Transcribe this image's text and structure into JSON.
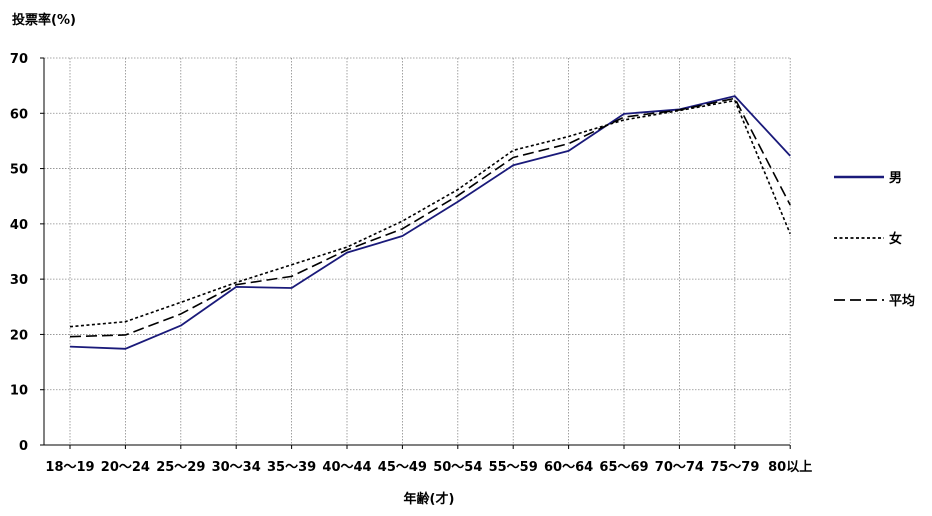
{
  "chart_data": {
    "type": "line",
    "ylabel": "投票率(%)",
    "xlabel": "年齢(才)",
    "ylim": [
      0,
      70
    ],
    "yticks": [
      "0",
      "10",
      "20",
      "30",
      "40",
      "50",
      "60",
      "70"
    ],
    "grid": true,
    "legend_position": "right",
    "categories": [
      "18〜19",
      "20〜24",
      "25〜29",
      "30〜34",
      "35〜39",
      "40〜44",
      "45〜49",
      "50〜54",
      "55〜59",
      "60〜64",
      "65〜69",
      "70〜74",
      "75〜79",
      "80以上"
    ],
    "series": [
      {
        "name": "男",
        "style": "solid",
        "color": "#1a1a7a",
        "values": [
          17.8,
          17.4,
          21.6,
          28.6,
          28.4,
          34.8,
          37.8,
          44.0,
          50.6,
          53.2,
          59.9,
          60.7,
          63.1,
          52.3
        ]
      },
      {
        "name": "女",
        "style": "dotted",
        "color": "#000000",
        "values": [
          21.4,
          22.3,
          25.8,
          29.4,
          32.6,
          35.8,
          40.5,
          46.2,
          53.3,
          55.8,
          58.8,
          60.5,
          62.3,
          38.2
        ]
      },
      {
        "name": "平均",
        "style": "dashed",
        "color": "#000000",
        "values": [
          19.6,
          19.9,
          23.7,
          29.0,
          30.5,
          35.3,
          39.1,
          45.1,
          52.0,
          54.5,
          59.3,
          60.6,
          62.7,
          43.4
        ]
      }
    ]
  }
}
